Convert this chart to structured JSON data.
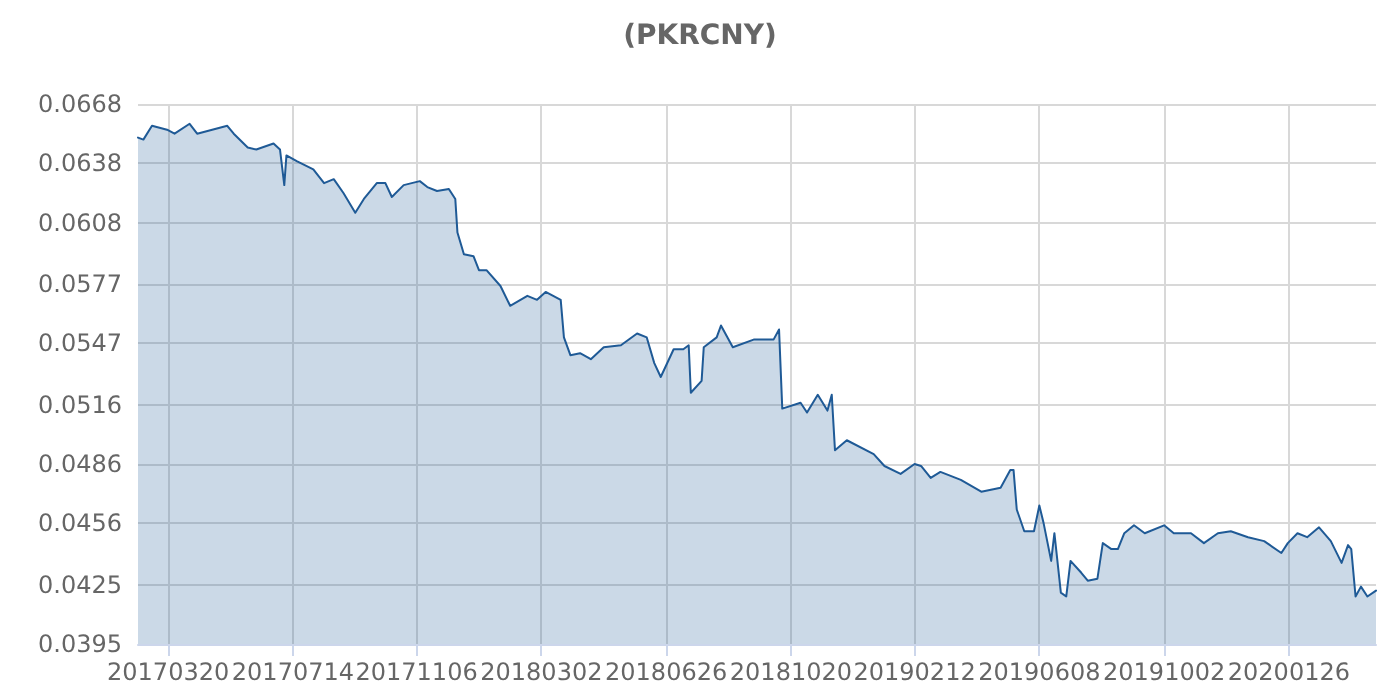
{
  "chart_data": {
    "type": "area",
    "title": "(PKRCNY)",
    "x": [
      "2017-02-20",
      "2017-02-25",
      "2017-03-05",
      "2017-03-19",
      "2017-03-26",
      "2017-04-09",
      "2017-04-16",
      "2017-05-14",
      "2017-05-20",
      "2017-06-02",
      "2017-06-10",
      "2017-06-26",
      "2017-07-02",
      "2017-07-06",
      "2017-07-08",
      "2017-07-18",
      "2017-08-02",
      "2017-08-12",
      "2017-08-21",
      "2017-08-30",
      "2017-09-10",
      "2017-09-18",
      "2017-09-30",
      "2017-10-08",
      "2017-10-14",
      "2017-10-25",
      "2017-11-09",
      "2017-11-16",
      "2017-11-25",
      "2017-12-06",
      "2017-12-12",
      "2017-12-14",
      "2017-12-20",
      "2017-12-29",
      "2018-01-03",
      "2018-01-10",
      "2018-01-23",
      "2018-02-01",
      "2018-02-17",
      "2018-02-26",
      "2018-03-06",
      "2018-03-20",
      "2018-03-23",
      "2018-03-29",
      "2018-04-07",
      "2018-04-17",
      "2018-04-29",
      "2018-05-15",
      "2018-05-30",
      "2018-06-08",
      "2018-06-15",
      "2018-06-21",
      "2018-07-03",
      "2018-07-12",
      "2018-07-17",
      "2018-07-19",
      "2018-07-29",
      "2018-07-31",
      "2018-08-12",
      "2018-08-16",
      "2018-08-27",
      "2018-09-16",
      "2018-10-04",
      "2018-10-09",
      "2018-10-12",
      "2018-10-29",
      "2018-11-04",
      "2018-11-14",
      "2018-11-23",
      "2018-11-27",
      "2018-11-30",
      "2018-12-11",
      "2019-01-05",
      "2019-01-15",
      "2019-01-30",
      "2019-02-12",
      "2019-02-18",
      "2019-02-27",
      "2019-03-08",
      "2019-03-27",
      "2019-04-15",
      "2019-05-03",
      "2019-05-12",
      "2019-05-15",
      "2019-05-18",
      "2019-05-25",
      "2019-06-03",
      "2019-06-08",
      "2019-06-12",
      "2019-06-19",
      "2019-06-22",
      "2019-06-28",
      "2019-07-03",
      "2019-07-07",
      "2019-07-17",
      "2019-07-23",
      "2019-08-01",
      "2019-08-06",
      "2019-08-14",
      "2019-08-20",
      "2019-08-26",
      "2019-09-04",
      "2019-09-14",
      "2019-10-02",
      "2019-10-11",
      "2019-10-27",
      "2019-11-08",
      "2019-11-21",
      "2019-12-03",
      "2019-12-19",
      "2020-01-03",
      "2020-01-19",
      "2020-01-25",
      "2020-02-03",
      "2020-02-12",
      "2020-02-23",
      "2020-03-05",
      "2020-03-15",
      "2020-03-21",
      "2020-03-24",
      "2020-03-28",
      "2020-04-02",
      "2020-04-08",
      "2020-04-16"
    ],
    "series": [
      {
        "color": "#1f5a96",
        "values": [
          0.0651,
          0.065,
          0.0657,
          0.0655,
          0.0653,
          0.0658,
          0.0653,
          0.0657,
          0.0653,
          0.0646,
          0.0645,
          0.0648,
          0.0645,
          0.0627,
          0.0642,
          0.0639,
          0.0635,
          0.0628,
          0.063,
          0.0623,
          0.0613,
          0.062,
          0.0628,
          0.0628,
          0.0621,
          0.0627,
          0.0629,
          0.0626,
          0.0624,
          0.0625,
          0.062,
          0.0603,
          0.0592,
          0.0591,
          0.0584,
          0.0584,
          0.0576,
          0.0566,
          0.0571,
          0.0569,
          0.0573,
          0.0569,
          0.055,
          0.0541,
          0.0542,
          0.0539,
          0.0545,
          0.0546,
          0.0552,
          0.055,
          0.0537,
          0.053,
          0.0544,
          0.0544,
          0.0546,
          0.0522,
          0.0528,
          0.0545,
          0.055,
          0.0556,
          0.0545,
          0.0549,
          0.0549,
          0.0554,
          0.0514,
          0.0517,
          0.0512,
          0.0521,
          0.0513,
          0.0521,
          0.0493,
          0.0498,
          0.0491,
          0.0485,
          0.0481,
          0.0486,
          0.0485,
          0.0479,
          0.0482,
          0.0478,
          0.0472,
          0.0474,
          0.0483,
          0.0483,
          0.0463,
          0.0452,
          0.0452,
          0.0465,
          0.0456,
          0.0437,
          0.0451,
          0.0421,
          0.0419,
          0.0437,
          0.0431,
          0.0427,
          0.0428,
          0.0446,
          0.0443,
          0.0443,
          0.0451,
          0.0455,
          0.0451,
          0.0455,
          0.0451,
          0.0451,
          0.0446,
          0.0451,
          0.0452,
          0.0449,
          0.0447,
          0.0441,
          0.0446,
          0.0451,
          0.0449,
          0.0454,
          0.0447,
          0.0436,
          0.0445,
          0.0443,
          0.0419,
          0.0424,
          0.0419,
          0.0422
        ]
      }
    ],
    "xlim": [
      "2017-02-20",
      "2020-04-16"
    ],
    "xticks": [
      {
        "value": "2017-03-20",
        "label": "20170320"
      },
      {
        "value": "2017-07-14",
        "label": "20170714"
      },
      {
        "value": "2017-11-06",
        "label": "20171106"
      },
      {
        "value": "2018-03-02",
        "label": "20180302"
      },
      {
        "value": "2018-06-26",
        "label": "20180626"
      },
      {
        "value": "2018-10-20",
        "label": "20181020"
      },
      {
        "value": "2019-02-12",
        "label": "20190212"
      },
      {
        "value": "2019-06-08",
        "label": "20190608"
      },
      {
        "value": "2019-10-02",
        "label": "20191002"
      },
      {
        "value": "2020-01-26",
        "label": "20200126"
      }
    ],
    "ylim": [
      0.0395,
      0.0668
    ],
    "yticks": [
      0.0395,
      0.0425,
      0.0456,
      0.0486,
      0.0516,
      0.0547,
      0.0577,
      0.0608,
      0.0638,
      0.0668
    ],
    "grid": true,
    "marker": "none",
    "line_style": "solid"
  }
}
